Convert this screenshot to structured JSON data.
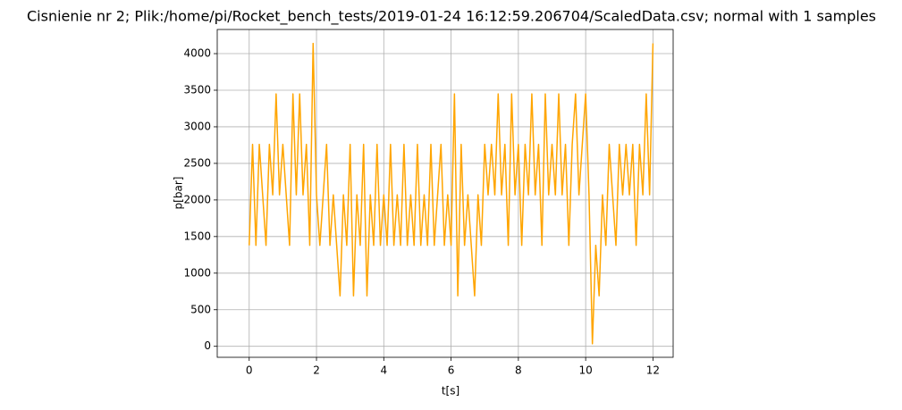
{
  "chart_data": {
    "type": "line",
    "title": "Cisnienie nr 2; Plik:/home/pi/Rocket_bench_tests/2019-01-24 16:12:59.206704/ScaledData.csv; normal with 1 samples",
    "x_label": "t[s]",
    "y_label": "p[bar]",
    "x": [
      0.0,
      0.1,
      0.2,
      0.3,
      0.4,
      0.5,
      0.6,
      0.7,
      0.8,
      0.9,
      1.0,
      1.1,
      1.2,
      1.3,
      1.4,
      1.5,
      1.6,
      1.7,
      1.8,
      1.9,
      2.0,
      2.1,
      2.2,
      2.3,
      2.4,
      2.5,
      2.6,
      2.7,
      2.8,
      2.9,
      3.0,
      3.1,
      3.2,
      3.3,
      3.4,
      3.5,
      3.6,
      3.7,
      3.8,
      3.9,
      4.0,
      4.1,
      4.2,
      4.3,
      4.4,
      4.5,
      4.6,
      4.7,
      4.8,
      4.9,
      5.0,
      5.1,
      5.2,
      5.3,
      5.4,
      5.5,
      5.6,
      5.7,
      5.8,
      5.9,
      6.0,
      6.1,
      6.2,
      6.3,
      6.4,
      6.5,
      6.6,
      6.7,
      6.8,
      6.9,
      7.0,
      7.1,
      7.2,
      7.3,
      7.4,
      7.5,
      7.6,
      7.7,
      7.8,
      7.9,
      8.0,
      8.1,
      8.2,
      8.3,
      8.4,
      8.5,
      8.6,
      8.7,
      8.8,
      8.9,
      9.0,
      9.1,
      9.2,
      9.3,
      9.4,
      9.5,
      9.6,
      9.7,
      9.8,
      9.9,
      10.0,
      10.1,
      10.2,
      10.3,
      10.4,
      10.5,
      10.6,
      10.7,
      10.8,
      10.9,
      11.0,
      11.1,
      11.2,
      11.3,
      11.4,
      11.5,
      11.6,
      11.7,
      11.8,
      11.9,
      12.0
    ],
    "series": [
      {
        "name": "p",
        "color": "#ffa500",
        "values": [
          1380,
          2760,
          1380,
          2760,
          2070,
          1380,
          2760,
          2070,
          3450,
          2070,
          2760,
          2070,
          1380,
          3450,
          2070,
          3450,
          2070,
          2760,
          1380,
          4140,
          2070,
          1380,
          2070,
          2760,
          1380,
          2070,
          1380,
          690,
          2070,
          1380,
          2760,
          690,
          2070,
          1380,
          2760,
          690,
          2070,
          1380,
          2760,
          1380,
          2070,
          1380,
          2760,
          1380,
          2070,
          1380,
          2760,
          1380,
          2070,
          1380,
          2760,
          1380,
          2070,
          1380,
          2760,
          1380,
          2070,
          2760,
          1380,
          2070,
          1380,
          3450,
          690,
          2760,
          1380,
          2070,
          1380,
          690,
          2070,
          1380,
          2760,
          2070,
          2760,
          2070,
          3450,
          2070,
          2760,
          1380,
          3450,
          2070,
          2760,
          1380,
          2760,
          2070,
          3450,
          2070,
          2760,
          1380,
          3450,
          2070,
          2760,
          2070,
          3450,
          2070,
          2760,
          1380,
          2760,
          3450,
          2070,
          2760,
          3450,
          2070,
          35,
          1380,
          690,
          2070,
          1380,
          2760,
          2070,
          1380,
          2760,
          2070,
          2760,
          2070,
          2760,
          1380,
          2760,
          2070,
          3450,
          2070,
          4140
        ]
      }
    ],
    "xlim": [
      -0.95,
      12.6
    ],
    "ylim": [
      -150,
      4330
    ],
    "xticks": [
      0,
      2,
      4,
      6,
      8,
      10,
      12
    ],
    "yticks": [
      0,
      500,
      1000,
      1500,
      2000,
      2500,
      3000,
      3500,
      4000
    ],
    "grid": true
  }
}
